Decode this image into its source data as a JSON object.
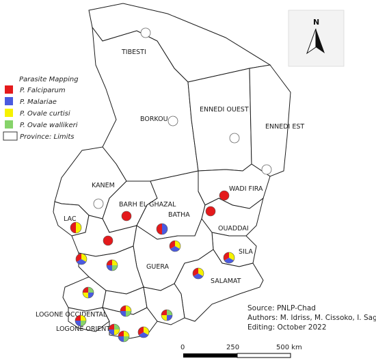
{
  "north_arrow": {
    "letter": "N"
  },
  "legend": {
    "title": "Parasite Mapping",
    "items": [
      {
        "label": "P. Falciparum",
        "color": "#e41a1c"
      },
      {
        "label": "P. Malariae",
        "color": "#4a5ae0"
      },
      {
        "label": "P. Ovale curtisi",
        "color": "#f6f200"
      },
      {
        "label": "P. Ovale wallikeri",
        "color": "#86d36a"
      },
      {
        "label": "Province: Limits",
        "color": "#ffffff"
      }
    ]
  },
  "provinces": {
    "tibesti": "TIBESTI",
    "borkou": "BORKOU",
    "ennedi_ouest": "ENNEDI OUEST",
    "ennedi_est": "ENNEDI EST",
    "kanem": "KANEM",
    "wadi_fira": "WADI FIRA",
    "barh_el_ghazal": "BARH EL GHAZAL",
    "batha": "BATHA",
    "lac": "LAC",
    "ouaddai": "OUADDAI",
    "sila": "SILA",
    "guera": "GUERA",
    "salamat": "SALAMAT",
    "logone_occidental": "LOGONE OCCIDENTAL",
    "logone_oriental": "LOGONE ORIENTAL"
  },
  "source": {
    "line1": "Source: PNLP-Chad",
    "line2": "Authors: M. Idriss, M. Cissoko, I. Sagara",
    "line3": "Editing: October 2022"
  },
  "scale": {
    "zero": "0",
    "mid": "250",
    "end": "500 km"
  }
}
